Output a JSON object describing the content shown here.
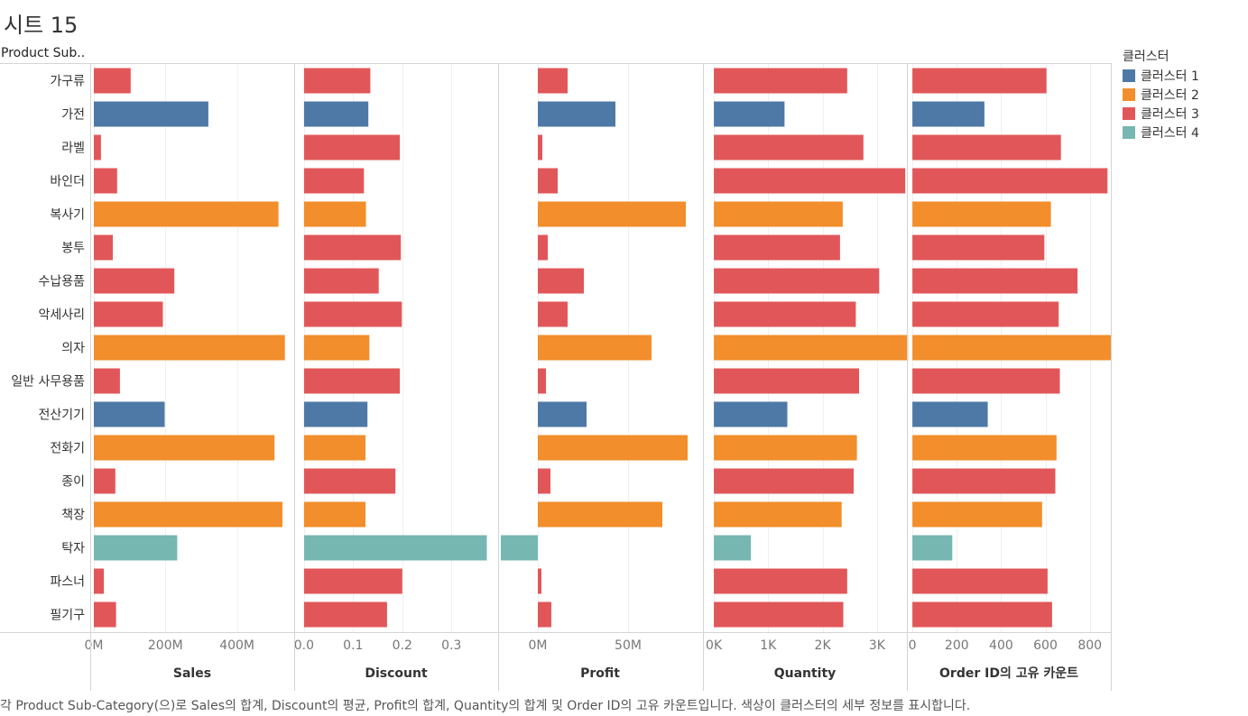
{
  "sheet_title": "시트 15",
  "caption": "각 Product Sub-Category(으)로 Sales의 합계, Discount의 평균, Profit의 합계, Quantity의 합계 및 Order ID의 고유 카운트입니다. 색상이 클러스터의 세부 정보를 표시합니다.",
  "legend": {
    "title": "클러스터",
    "items": [
      {
        "label": "클러스터 1",
        "color": "#4e79a7"
      },
      {
        "label": "클러스터 2",
        "color": "#f28e2b"
      },
      {
        "label": "클러스터 3",
        "color": "#e15759"
      },
      {
        "label": "클러스터 4",
        "color": "#76b7b2"
      }
    ]
  },
  "chart_data": {
    "type": "bar",
    "orientation": "horizontal",
    "dimension_label": "Product Sub..",
    "categories": [
      "가구류",
      "가전",
      "라벨",
      "바인더",
      "복사기",
      "봉투",
      "수납용품",
      "악세사리",
      "의자",
      "일반 사무용품",
      "전산기기",
      "전화기",
      "종이",
      "책장",
      "탁자",
      "파스너",
      "필기구"
    ],
    "clusters": [
      3,
      1,
      3,
      3,
      2,
      3,
      3,
      3,
      2,
      3,
      1,
      2,
      3,
      2,
      4,
      3,
      3
    ],
    "series": [
      {
        "name": "Sales",
        "unit": "M",
        "xlim": [
          -10,
          560
        ],
        "ticks": [
          {
            "v": 0,
            "label": "0M"
          },
          {
            "v": 200,
            "label": "200M"
          },
          {
            "v": 400,
            "label": "400M"
          }
        ],
        "values": [
          103,
          320,
          20,
          65,
          516,
          53,
          225,
          193,
          534,
          73,
          198,
          505,
          60,
          527,
          233,
          28,
          62
        ]
      },
      {
        "name": "Discount",
        "xlim": [
          -0.02,
          0.395
        ],
        "ticks": [
          {
            "v": 0,
            "label": "0.0"
          },
          {
            "v": 0.1,
            "label": "0.1"
          },
          {
            "v": 0.2,
            "label": "0.2"
          },
          {
            "v": 0.3,
            "label": "0.3"
          }
        ],
        "values": [
          0.135,
          0.131,
          0.195,
          0.122,
          0.126,
          0.197,
          0.152,
          0.199,
          0.133,
          0.195,
          0.129,
          0.125,
          0.186,
          0.125,
          0.372,
          0.2,
          0.169
        ]
      },
      {
        "name": "Profit",
        "unit": "M",
        "xlim": [
          -22,
          91
        ],
        "ticks": [
          {
            "v": 0,
            "label": "0M"
          },
          {
            "v": 50,
            "label": "50M"
          }
        ],
        "values": [
          16.5,
          43,
          2.5,
          11,
          82,
          5.5,
          25.5,
          16.5,
          63,
          4.5,
          27,
          83,
          7,
          69,
          -20.5,
          2,
          7.5
        ]
      },
      {
        "name": "Quantity",
        "unit": "K",
        "xlim": [
          -0.2,
          3.55
        ],
        "ticks": [
          {
            "v": 0,
            "label": "0K"
          },
          {
            "v": 1,
            "label": "1K"
          },
          {
            "v": 2,
            "label": "2K"
          },
          {
            "v": 3,
            "label": "3K"
          }
        ],
        "values": [
          2.45,
          1.3,
          2.75,
          3.52,
          2.37,
          2.32,
          3.04,
          2.61,
          3.57,
          2.67,
          1.35,
          2.63,
          2.57,
          2.35,
          0.68,
          2.45,
          2.38
        ]
      },
      {
        "name": "Order ID의 고유 카운트",
        "xlim": [
          -25,
          895
        ],
        "ticks": [
          {
            "v": 0,
            "label": "0"
          },
          {
            "v": 200,
            "label": "200"
          },
          {
            "v": 400,
            "label": "400"
          },
          {
            "v": 600,
            "label": "600"
          },
          {
            "v": 800,
            "label": "800"
          }
        ],
        "values": [
          605,
          325,
          670,
          880,
          625,
          595,
          745,
          660,
          895,
          665,
          340,
          650,
          645,
          585,
          180,
          610,
          630
        ]
      }
    ]
  }
}
